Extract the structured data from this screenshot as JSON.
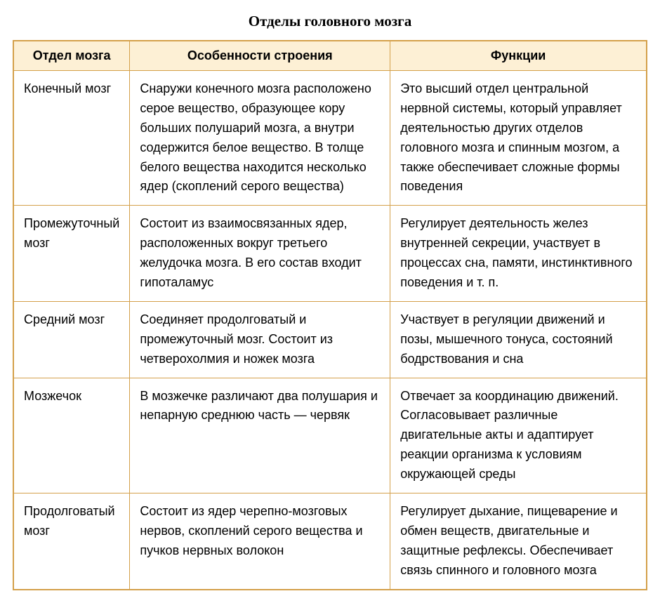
{
  "title": "Отделы головного мозга",
  "table": {
    "columns": [
      "Отдел мозга",
      "Особенности строения",
      "Функции"
    ],
    "rows": [
      {
        "name": "Конечный мозг",
        "structure": "Снаружи конечного мозга расположено серое вещество, образующее кору больших полушарий мозга, а внутри содержится белое вещество. В толще белого вещества находится несколько ядер (скоплений серого вещества)",
        "functions": "Это высший отдел центральной нервной системы, который управляет деятельностью других отделов головного мозга и спинным мозгом, а также обеспечивает сложные формы поведения"
      },
      {
        "name": "Промежуточный мозг",
        "structure": "Состоит из взаимосвязанных ядер, расположенных вокруг третьего желудочка мозга. В его состав входит гипоталамус",
        "functions": "Регулирует деятельность желез внутренней секреции, участвует в процессах сна, памяти, инстинктивного поведения и т. п."
      },
      {
        "name": "Средний мозг",
        "structure": "Соединяет продолговатый и промежуточный мозг. Состоит из четверохолмия и ножек мозга",
        "functions": "Участвует в регуляции движений и позы, мышечного тонуса, состояний бодрствования и сна"
      },
      {
        "name": "Мозжечок",
        "structure": "В мозжечке различают два полушария и непарную среднюю часть — червяк",
        "functions": "Отвечает за координацию движений. Согласовывает различные двигательные акты и адаптирует реакции организма к условиям окружающей среды"
      },
      {
        "name": "Продолговатый мозг",
        "structure": "Состоит из ядер черепно-мозговых нервов, скоплений серого вещества и пучков нервных волокон",
        "functions": "Регулирует дыхание, пищеварение и обмен веществ, двигательные и защитные рефлексы. Обеспечивает связь спинного и головного мозга"
      }
    ],
    "colors": {
      "border": "#d4a04a",
      "header_bg": "#fdf0d5",
      "body_bg": "#ffffff",
      "text": "#000000"
    },
    "column_widths_pct": [
      14.5,
      43,
      42.5
    ],
    "fonts": {
      "title_family": "Georgia, serif",
      "title_size_pt": 16,
      "header_size_pt": 13,
      "cell_size_pt": 13
    }
  }
}
